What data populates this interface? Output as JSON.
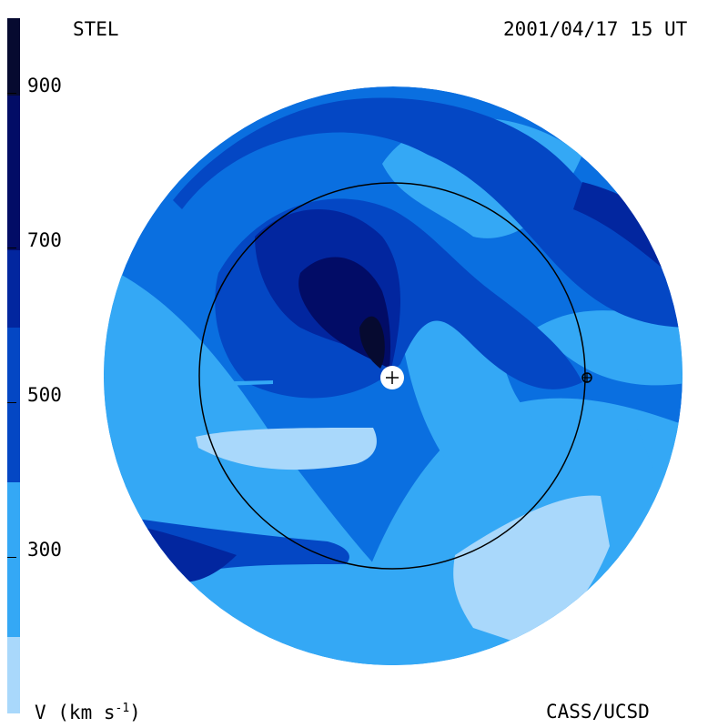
{
  "header": {
    "left_label": "STEL",
    "date_label": "2001/04/17 15 UT"
  },
  "footer": {
    "units_label": "V (km s",
    "units_exp": "-1",
    "units_close": ")",
    "credit": "CASS/UCSD"
  },
  "colorbar": {
    "ticks": [
      "900",
      "700",
      "500",
      "300"
    ],
    "colors": [
      "#a9d8fb",
      "#34a8f5",
      "#0a6fe0",
      "#0447c4",
      "#02269f",
      "#020c66",
      "#060a30"
    ]
  },
  "map": {
    "earth_symbol": "⊕",
    "sun_symbol": "+",
    "icons": [
      "sun-marker-icon",
      "earth-marker-icon"
    ]
  }
}
